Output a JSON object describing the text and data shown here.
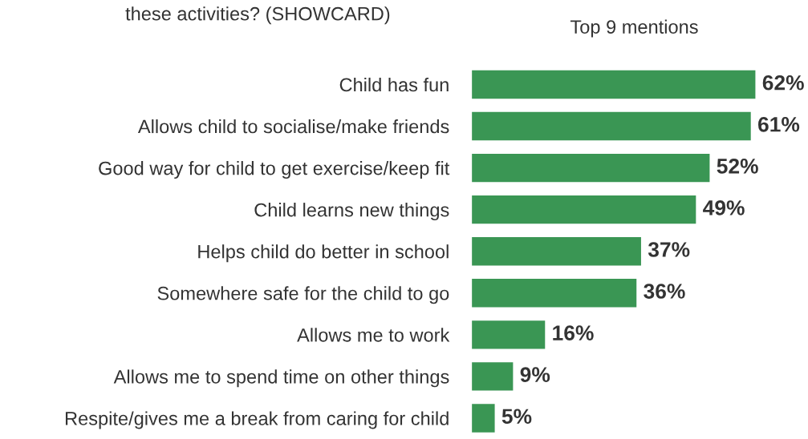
{
  "chart_data": {
    "type": "bar",
    "orientation": "horizontal",
    "title": "these activities? (SHOWCARD)",
    "subtitle": "Top 9 mentions",
    "categories": [
      "Child has fun",
      "Allows child to socialise/make friends",
      "Good way for child to get exercise/keep fit",
      "Child learns new things",
      "Helps child do better in school",
      "Somewhere safe for the child to go",
      "Allows me to work",
      "Allows me to spend time on other things",
      "Respite/gives me a break from caring for child"
    ],
    "values": [
      62,
      61,
      52,
      49,
      37,
      36,
      16,
      9,
      5
    ],
    "value_labels": [
      "62%",
      "61%",
      "52%",
      "49%",
      "37%",
      "36%",
      "16%",
      "9%",
      "5%"
    ],
    "color": "#3a9654",
    "grid": false,
    "legend": false
  }
}
